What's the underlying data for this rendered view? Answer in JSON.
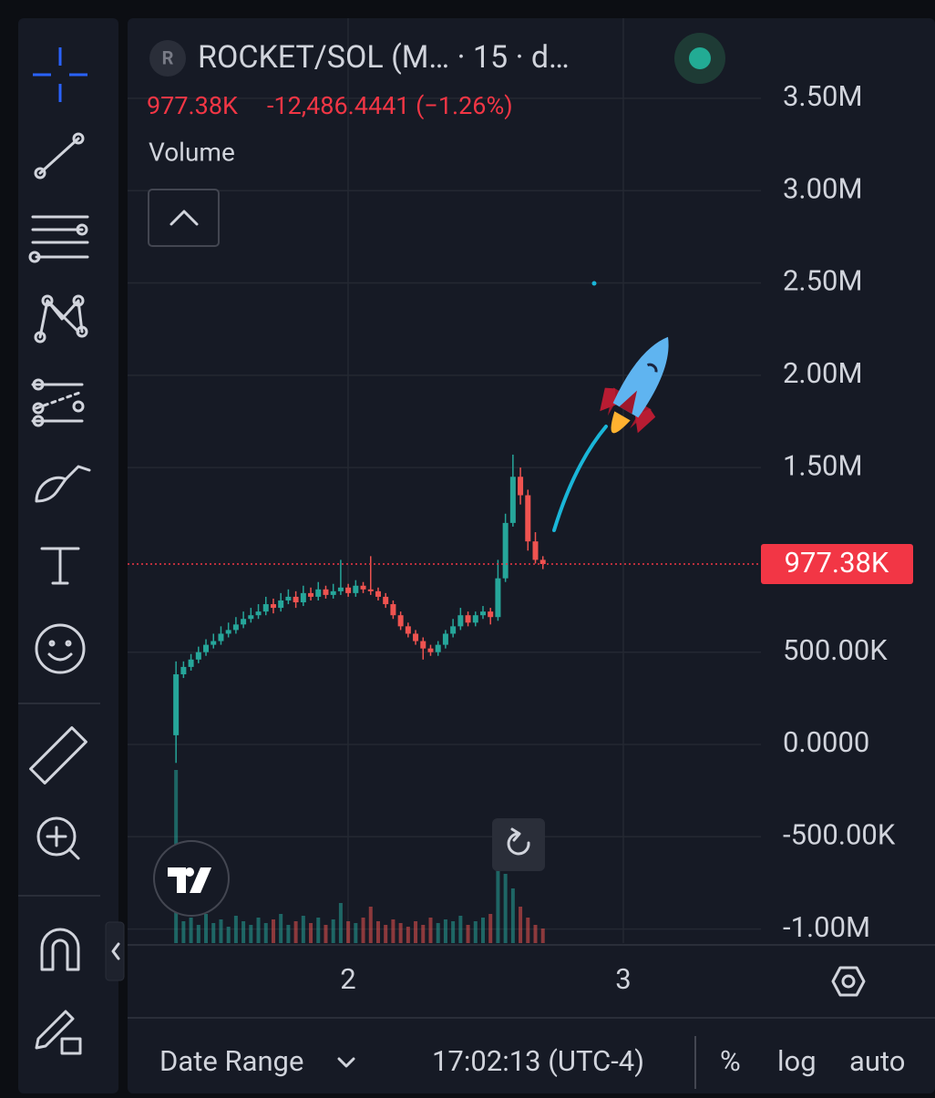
{
  "header": {
    "avatar": "R",
    "symbol": "ROCKET/SOL (M… · 15 · d…",
    "last": "977.38K",
    "change": "-12,486.4441 (−1.26%)",
    "volume_label": "Volume"
  },
  "chart_data": {
    "type": "candlestick",
    "x": [
      1.375,
      1.4022,
      1.4294,
      1.4566,
      1.4838,
      1.511,
      1.5382,
      1.5654,
      1.5926,
      1.6198,
      1.647,
      1.6742,
      1.7014,
      1.7286,
      1.7558,
      1.783,
      1.8102,
      1.8374,
      1.8646,
      1.8918,
      1.919,
      1.9462,
      1.9734,
      2.0006,
      2.0278,
      2.055,
      2.0822,
      2.1094,
      2.1366,
      2.1638,
      2.191,
      2.2182,
      2.2454,
      2.2726,
      2.2998,
      2.327,
      2.3542,
      2.3814,
      2.4086,
      2.4358,
      2.463,
      2.4902,
      2.5174,
      2.5446,
      2.5718,
      2.599,
      2.6262,
      2.6534,
      2.6806,
      2.7078
    ],
    "open": [
      50000,
      380000,
      420000,
      460000,
      500000,
      540000,
      560000,
      600000,
      620000,
      650000,
      680000,
      700000,
      720000,
      760000,
      740000,
      780000,
      800000,
      770000,
      820000,
      800000,
      840000,
      810000,
      830000,
      850000,
      820000,
      860000,
      840000,
      830000,
      800000,
      760000,
      700000,
      640000,
      600000,
      560000,
      520000,
      500000,
      540000,
      600000,
      640000,
      700000,
      660000,
      700000,
      720000,
      690000,
      900000,
      1200000,
      1450000,
      1350000,
      1100000,
      1000000
    ],
    "high": [
      450000,
      450000,
      490000,
      530000,
      570000,
      600000,
      640000,
      660000,
      690000,
      720000,
      740000,
      760000,
      800000,
      790000,
      820000,
      840000,
      830000,
      860000,
      850000,
      880000,
      860000,
      870000,
      1000000,
      870000,
      890000,
      880000,
      1020000,
      850000,
      820000,
      780000,
      720000,
      660000,
      620000,
      580000,
      540000,
      560000,
      620000,
      680000,
      740000,
      720000,
      720000,
      750000,
      740000,
      1000000,
      1250000,
      1570000,
      1500000,
      1380000,
      1150000,
      1020000
    ],
    "low": [
      -100000,
      360000,
      400000,
      440000,
      480000,
      520000,
      540000,
      580000,
      600000,
      630000,
      660000,
      680000,
      700000,
      710000,
      720000,
      760000,
      740000,
      750000,
      780000,
      780000,
      790000,
      790000,
      810000,
      800000,
      800000,
      820000,
      810000,
      780000,
      740000,
      680000,
      620000,
      580000,
      540000,
      460000,
      480000,
      480000,
      520000,
      580000,
      620000,
      640000,
      640000,
      680000,
      650000,
      670000,
      880000,
      1180000,
      1300000,
      1050000,
      980000,
      950000
    ],
    "close": [
      380000,
      420000,
      460000,
      500000,
      540000,
      560000,
      600000,
      620000,
      650000,
      680000,
      700000,
      720000,
      760000,
      740000,
      780000,
      800000,
      770000,
      820000,
      800000,
      840000,
      810000,
      830000,
      850000,
      820000,
      860000,
      840000,
      830000,
      800000,
      760000,
      700000,
      640000,
      600000,
      560000,
      520000,
      500000,
      540000,
      600000,
      640000,
      700000,
      660000,
      700000,
      720000,
      690000,
      900000,
      1200000,
      1450000,
      1350000,
      1100000,
      1000000,
      977380
    ],
    "volume": [
      95,
      12,
      14,
      10,
      16,
      11,
      13,
      9,
      15,
      12,
      10,
      14,
      11,
      13,
      16,
      10,
      12,
      15,
      11,
      14,
      10,
      13,
      22,
      12,
      11,
      14,
      20,
      12,
      10,
      13,
      11,
      9,
      12,
      10,
      14,
      11,
      13,
      12,
      15,
      10,
      12,
      14,
      16,
      40,
      38,
      30,
      20,
      14,
      10,
      8
    ],
    "up_color": "#26a69a",
    "down_color": "#ef5350",
    "xlim": [
      1.199,
      3.5
    ],
    "xticks": [
      2,
      3
    ],
    "ylim": [
      -1076000,
      3934000
    ],
    "yticks": [
      {
        "value": 3500000,
        "label": "3.50M"
      },
      {
        "value": 3000000,
        "label": "3.00M"
      },
      {
        "value": 2500000,
        "label": "2.50M"
      },
      {
        "value": 2000000,
        "label": "2.00M"
      },
      {
        "value": 1500000,
        "label": "1.50M"
      },
      {
        "value": 500000,
        "label": "500.00K"
      },
      {
        "value": 0,
        "label": "0.0000"
      },
      {
        "value": -500000,
        "label": "-500.00K"
      },
      {
        "value": -1000000,
        "label": "-1.00M"
      }
    ],
    "y2lim": [
      0,
      100
    ],
    "price_line": {
      "value": 977380,
      "label": "977.38K"
    },
    "grid": true
  },
  "footer": {
    "date_range": "Date Range",
    "time": "17:02:13 (UTC-4)",
    "percent": "%",
    "log": "log",
    "auto": "auto"
  }
}
